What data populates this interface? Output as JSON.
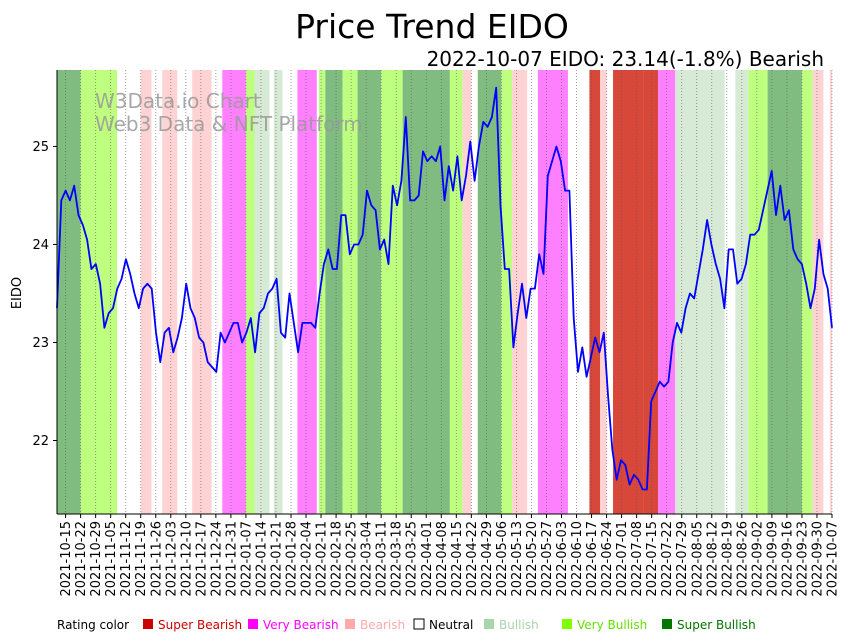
{
  "chart_data": {
    "type": "line",
    "title": "Price Trend EIDO",
    "subtitle": "2022-10-07 EIDO: 23.14(-1.8%) Bearish",
    "ylabel": "EIDO",
    "xlabel": "",
    "ylim": [
      21.25,
      25.78
    ],
    "yticks": [
      22,
      23,
      24,
      25
    ],
    "watermark": [
      "W3Data.io Chart",
      "Web3 Data & NFT Platform"
    ],
    "x_start": "2021-10-11",
    "x_end": "2022-10-07",
    "xtick_labels": [
      "2021-10-15",
      "2021-10-22",
      "2021-10-29",
      "2021-11-05",
      "2021-11-12",
      "2021-11-19",
      "2021-11-26",
      "2021-12-03",
      "2021-12-10",
      "2021-12-17",
      "2021-12-24",
      "2021-12-31",
      "2022-01-07",
      "2022-01-14",
      "2022-01-21",
      "2022-01-28",
      "2022-02-04",
      "2022-02-11",
      "2022-02-18",
      "2022-02-25",
      "2022-03-04",
      "2022-03-11",
      "2022-03-18",
      "2022-03-25",
      "2022-04-01",
      "2022-04-08",
      "2022-04-15",
      "2022-04-22",
      "2022-04-29",
      "2022-05-06",
      "2022-05-13",
      "2022-05-20",
      "2022-05-27",
      "2022-06-03",
      "2022-06-10",
      "2022-06-17",
      "2022-06-24",
      "2022-07-01",
      "2022-07-08",
      "2022-07-15",
      "2022-07-22",
      "2022-07-29",
      "2022-08-05",
      "2022-08-12",
      "2022-08-19",
      "2022-08-26",
      "2022-09-02",
      "2022-09-09",
      "2022-09-16",
      "2022-09-23",
      "2022-09-30",
      "2022-10-07"
    ],
    "series": [
      {
        "name": "EIDO",
        "color": "#0000ff",
        "values": [
          23.35,
          24.45,
          24.55,
          24.45,
          24.6,
          24.3,
          24.2,
          24.05,
          23.75,
          23.8,
          23.6,
          23.15,
          23.3,
          23.35,
          23.55,
          23.65,
          23.85,
          23.7,
          23.5,
          23.35,
          23.55,
          23.6,
          23.55,
          23.1,
          22.8,
          23.1,
          23.15,
          22.9,
          23.05,
          23.25,
          23.6,
          23.35,
          23.25,
          23.05,
          23.0,
          22.8,
          22.75,
          22.7,
          23.1,
          23.0,
          23.1,
          23.2,
          23.2,
          23.0,
          23.1,
          23.25,
          22.9,
          23.3,
          23.35,
          23.5,
          23.55,
          23.65,
          23.1,
          23.05,
          23.5,
          23.2,
          22.9,
          23.2,
          23.2,
          23.2,
          23.15,
          23.5,
          23.8,
          23.95,
          23.75,
          23.75,
          24.3,
          24.3,
          23.9,
          24.0,
          24.0,
          24.1,
          24.55,
          24.4,
          24.35,
          23.95,
          24.05,
          23.8,
          24.6,
          24.4,
          24.65,
          25.3,
          24.45,
          24.45,
          24.5,
          24.95,
          24.85,
          24.9,
          24.85,
          25.0,
          24.45,
          24.8,
          24.55,
          24.9,
          24.45,
          24.7,
          25.05,
          24.65,
          25.0,
          25.25,
          25.2,
          25.3,
          25.6,
          24.4,
          23.75,
          23.75,
          22.95,
          23.3,
          23.6,
          23.25,
          23.55,
          23.55,
          23.9,
          23.7,
          24.7,
          24.85,
          25.0,
          24.85,
          24.55,
          24.55,
          23.25,
          22.7,
          22.95,
          22.65,
          22.85,
          23.05,
          22.9,
          23.1,
          22.45,
          21.9,
          21.6,
          21.8,
          21.75,
          21.55,
          21.65,
          21.6,
          21.5,
          21.5,
          22.4,
          22.5,
          22.6,
          22.55,
          22.6,
          23.0,
          23.2,
          23.1,
          23.35,
          23.5,
          23.45,
          23.7,
          23.95,
          24.25,
          24.0,
          23.8,
          23.65,
          23.35,
          23.95,
          23.95,
          23.6,
          23.65,
          23.8,
          24.1,
          24.1,
          24.15,
          24.35,
          24.55,
          24.75,
          24.3,
          24.6,
          24.25,
          24.35,
          23.95,
          23.85,
          23.8,
          23.6,
          23.35,
          23.55,
          24.05,
          23.7,
          23.55,
          23.15
        ]
      }
    ],
    "ratings": [
      {
        "start": "2021-10-11",
        "end": "2021-10-22",
        "rating": "Super Bullish"
      },
      {
        "start": "2021-10-22",
        "end": "2021-11-08",
        "rating": "Very Bullish"
      },
      {
        "start": "2021-11-19",
        "end": "2021-11-24",
        "rating": "Bearish"
      },
      {
        "start": "2021-11-29",
        "end": "2021-12-06",
        "rating": "Bearish"
      },
      {
        "start": "2021-12-13",
        "end": "2021-12-22",
        "rating": "Bearish"
      },
      {
        "start": "2021-12-27",
        "end": "2021-12-31",
        "rating": "Very Bearish"
      },
      {
        "start": "2021-12-31",
        "end": "2022-01-07",
        "rating": "Very Bearish"
      },
      {
        "start": "2022-01-07",
        "end": "2022-01-11",
        "rating": "Very Bullish"
      },
      {
        "start": "2022-01-11",
        "end": "2022-01-18",
        "rating": "Bullish"
      },
      {
        "start": "2022-01-20",
        "end": "2022-01-24",
        "rating": "Bullish"
      },
      {
        "start": "2022-01-31",
        "end": "2022-02-09",
        "rating": "Very Bearish"
      },
      {
        "start": "2022-02-10",
        "end": "2022-02-13",
        "rating": "Very Bullish"
      },
      {
        "start": "2022-02-13",
        "end": "2022-02-21",
        "rating": "Super Bullish"
      },
      {
        "start": "2022-02-21",
        "end": "2022-02-28",
        "rating": "Very Bullish"
      },
      {
        "start": "2022-02-28",
        "end": "2022-03-11",
        "rating": "Super Bullish"
      },
      {
        "start": "2022-03-11",
        "end": "2022-03-21",
        "rating": "Very Bullish"
      },
      {
        "start": "2022-03-21",
        "end": "2022-04-12",
        "rating": "Super Bullish"
      },
      {
        "start": "2022-04-12",
        "end": "2022-04-18",
        "rating": "Very Bullish"
      },
      {
        "start": "2022-04-18",
        "end": "2022-04-22",
        "rating": "Bearish"
      },
      {
        "start": "2022-04-25",
        "end": "2022-05-06",
        "rating": "Super Bullish"
      },
      {
        "start": "2022-05-06",
        "end": "2022-05-11",
        "rating": "Very Bullish"
      },
      {
        "start": "2022-05-11",
        "end": "2022-05-18",
        "rating": "Bearish"
      },
      {
        "start": "2022-05-23",
        "end": "2022-06-06",
        "rating": "Very Bearish"
      },
      {
        "start": "2022-06-16",
        "end": "2022-06-21",
        "rating": "Super Bearish"
      },
      {
        "start": "2022-06-21",
        "end": "2022-06-24",
        "rating": "Bearish"
      },
      {
        "start": "2022-06-27",
        "end": "2022-07-11",
        "rating": "Super Bearish"
      },
      {
        "start": "2022-07-11",
        "end": "2022-07-18",
        "rating": "Super Bearish"
      },
      {
        "start": "2022-07-18",
        "end": "2022-07-26",
        "rating": "Very Bearish"
      },
      {
        "start": "2022-07-26",
        "end": "2022-08-18",
        "rating": "Bullish"
      },
      {
        "start": "2022-08-23",
        "end": "2022-08-29",
        "rating": "Bullish"
      },
      {
        "start": "2022-08-29",
        "end": "2022-09-07",
        "rating": "Very Bullish"
      },
      {
        "start": "2022-09-07",
        "end": "2022-09-23",
        "rating": "Super Bullish"
      },
      {
        "start": "2022-09-23",
        "end": "2022-09-28",
        "rating": "Very Bullish"
      },
      {
        "start": "2022-09-28",
        "end": "2022-10-03",
        "rating": "Bearish"
      },
      {
        "start": "2022-10-06",
        "end": "2022-10-07",
        "rating": "Bearish"
      }
    ],
    "legend": {
      "title": "Rating color",
      "items": [
        {
          "label": "Super Bearish",
          "color": "#cc0000",
          "text_color": "#cc0000"
        },
        {
          "label": "Very Bearish",
          "color": "#ff00ff",
          "text_color": "#ff00ff"
        },
        {
          "label": "Bearish",
          "color": "#ffaaaa",
          "text_color": "#ffaaaa"
        },
        {
          "label": "Neutral",
          "color": "#ffffff",
          "text_color": "#000000"
        },
        {
          "label": "Bullish",
          "color": "#aad4aa",
          "text_color": "#aad4aa"
        },
        {
          "label": "Very Bullish",
          "color": "#7fff00",
          "text_color": "#66dd00"
        },
        {
          "label": "Super Bullish",
          "color": "#007700",
          "text_color": "#007700"
        }
      ]
    },
    "rating_colors": {
      "Super Bearish": "#d8483a",
      "Very Bearish": "#ff80ff",
      "Bearish": "#ffd3d3",
      "Neutral": "#ffffff",
      "Bullish": "#d6ead6",
      "Very Bullish": "#bfff80",
      "Super Bullish": "#80bb80"
    }
  }
}
